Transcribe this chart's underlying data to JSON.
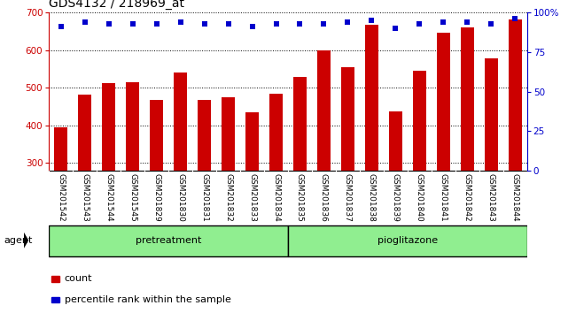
{
  "title": "GDS4132 / 218969_at",
  "samples": [
    "GSM201542",
    "GSM201543",
    "GSM201544",
    "GSM201545",
    "GSM201829",
    "GSM201830",
    "GSM201831",
    "GSM201832",
    "GSM201833",
    "GSM201834",
    "GSM201835",
    "GSM201836",
    "GSM201837",
    "GSM201838",
    "GSM201839",
    "GSM201840",
    "GSM201841",
    "GSM201842",
    "GSM201843",
    "GSM201844"
  ],
  "bar_values": [
    395,
    482,
    512,
    515,
    468,
    540,
    468,
    475,
    435,
    484,
    530,
    600,
    555,
    668,
    437,
    545,
    647,
    660,
    578,
    682
  ],
  "blue_dot_values": [
    91,
    94,
    93,
    93,
    93,
    94,
    93,
    93,
    91,
    93,
    93,
    93,
    94,
    95,
    90,
    93,
    94,
    94,
    93,
    96
  ],
  "bar_color": "#cc0000",
  "blue_color": "#0000cc",
  "ylim_left": [
    280,
    700
  ],
  "ylim_right": [
    0,
    100
  ],
  "yticks_left": [
    300,
    400,
    500,
    600,
    700
  ],
  "yticks_right": [
    0,
    25,
    50,
    75,
    100
  ],
  "pretreatment_count": 10,
  "pioglitazone_count": 10,
  "pretreatment_label": "pretreatment",
  "pioglitazone_label": "pioglitazone",
  "agent_label": "agent",
  "legend_count_label": "count",
  "legend_pct_label": "percentile rank within the sample",
  "group_color": "#90EE90",
  "tick_area_color": "#c8c8c8",
  "bar_width": 0.55,
  "title_fontsize": 10,
  "tick_fontsize": 6.5,
  "label_fontsize": 8,
  "right_axis_color": "#0000cc",
  "left_axis_color": "#cc0000"
}
